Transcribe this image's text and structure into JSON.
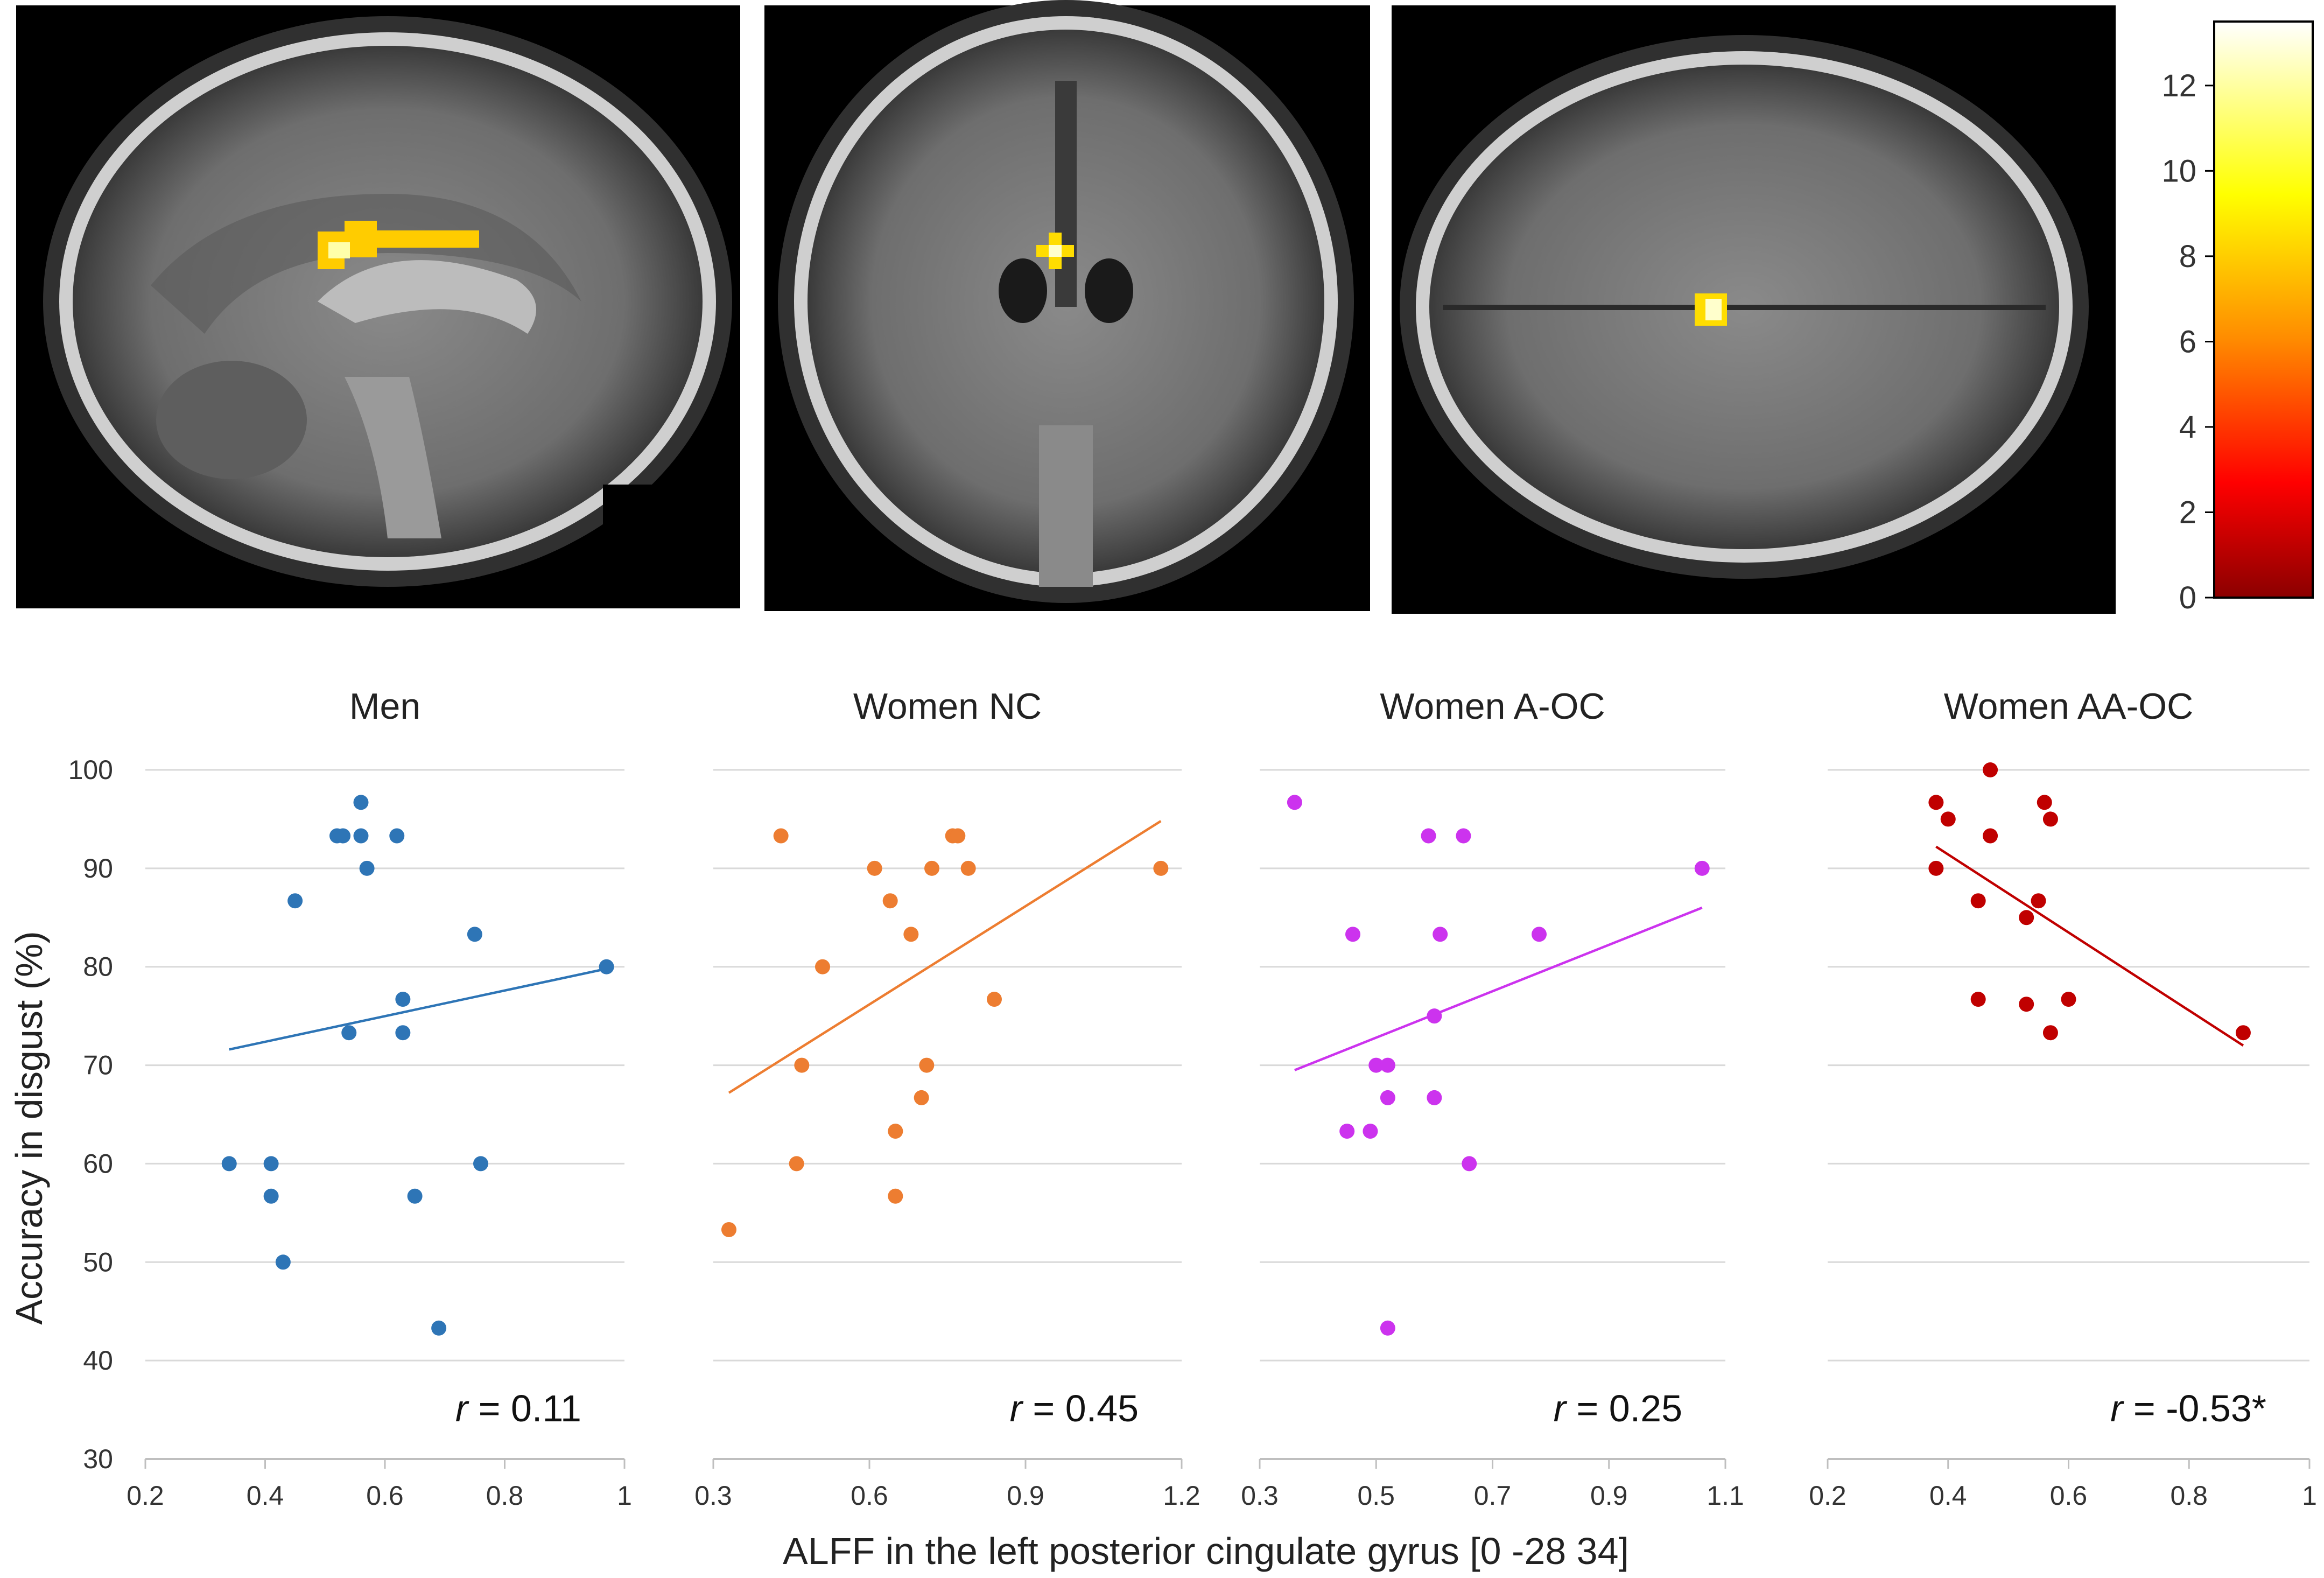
{
  "colorbar": {
    "ticks": [
      "0",
      "2",
      "4",
      "6",
      "8",
      "10",
      "12"
    ],
    "values": [
      0,
      2,
      4,
      6,
      8,
      10,
      12
    ],
    "range": [
      0,
      13.5
    ],
    "colors": [
      "#8b0000",
      "#ff0000",
      "#ff8c00",
      "#ffff00",
      "#ffffff"
    ]
  },
  "brain_views": [
    {
      "name": "sagittal",
      "background": "#000000"
    },
    {
      "name": "coronal",
      "background": "#000000"
    },
    {
      "name": "axial",
      "background": "#000000"
    }
  ],
  "chart_data": [
    {
      "type": "scatter",
      "title": "Men",
      "color": "#2e75b6",
      "xlim": [
        0.2,
        1
      ],
      "xticks": [
        "0.2",
        "0.4",
        "0.6",
        "0.8",
        "1"
      ],
      "xtick_values": [
        0.2,
        0.4,
        0.6,
        0.8,
        1.0
      ],
      "ylim": [
        30,
        100
      ],
      "points": [
        [
          0.34,
          60
        ],
        [
          0.41,
          60
        ],
        [
          0.41,
          56.7
        ],
        [
          0.43,
          50
        ],
        [
          0.45,
          86.7
        ],
        [
          0.52,
          93.3
        ],
        [
          0.53,
          93.3
        ],
        [
          0.54,
          73.3
        ],
        [
          0.56,
          96.7
        ],
        [
          0.56,
          93.3
        ],
        [
          0.57,
          90
        ],
        [
          0.62,
          93.3
        ],
        [
          0.63,
          76.7
        ],
        [
          0.63,
          73.3
        ],
        [
          0.65,
          56.7
        ],
        [
          0.69,
          43.3
        ],
        [
          0.75,
          83.3
        ],
        [
          0.76,
          60
        ],
        [
          0.97,
          80
        ]
      ],
      "fit": [
        [
          0.34,
          71.6
        ],
        [
          0.97,
          79.8
        ]
      ],
      "r_prefix": "r",
      "r_value": " = 0.11"
    },
    {
      "type": "scatter",
      "title": "Women NC",
      "color": "#ed7d31",
      "xlim": [
        0.3,
        1.2
      ],
      "xticks": [
        "0.3",
        "0.6",
        "0.9",
        "1.2"
      ],
      "xtick_values": [
        0.3,
        0.6,
        0.9,
        1.2
      ],
      "ylim": [
        30,
        100
      ],
      "points": [
        [
          0.33,
          53.3
        ],
        [
          0.43,
          93.3
        ],
        [
          0.46,
          60
        ],
        [
          0.47,
          70
        ],
        [
          0.51,
          80
        ],
        [
          0.61,
          90
        ],
        [
          0.64,
          86.7
        ],
        [
          0.65,
          63.3
        ],
        [
          0.65,
          56.7
        ],
        [
          0.68,
          83.3
        ],
        [
          0.7,
          66.7
        ],
        [
          0.71,
          70
        ],
        [
          0.72,
          90
        ],
        [
          0.76,
          93.3
        ],
        [
          0.77,
          93.3
        ],
        [
          0.79,
          90
        ],
        [
          0.84,
          76.7
        ],
        [
          1.16,
          90
        ]
      ],
      "fit": [
        [
          0.33,
          67.2
        ],
        [
          1.16,
          94.8
        ]
      ],
      "r_prefix": "r",
      "r_value": " = 0.45"
    },
    {
      "type": "scatter",
      "title": "Women A-OC",
      "color": "#cc33ee",
      "xlim": [
        0.3,
        1.1
      ],
      "xticks": [
        "0.3",
        "0.5",
        "0.7",
        "0.9",
        "1.1"
      ],
      "xtick_values": [
        0.3,
        0.5,
        0.7,
        0.9,
        1.1
      ],
      "ylim": [
        30,
        100
      ],
      "points": [
        [
          0.36,
          96.7
        ],
        [
          0.45,
          63.3
        ],
        [
          0.46,
          83.3
        ],
        [
          0.49,
          63.3
        ],
        [
          0.5,
          70
        ],
        [
          0.52,
          70
        ],
        [
          0.52,
          66.7
        ],
        [
          0.52,
          43.3
        ],
        [
          0.59,
          93.3
        ],
        [
          0.6,
          75
        ],
        [
          0.6,
          66.7
        ],
        [
          0.61,
          83.3
        ],
        [
          0.65,
          93.3
        ],
        [
          0.66,
          60
        ],
        [
          0.78,
          83.3
        ],
        [
          1.06,
          90
        ]
      ],
      "fit": [
        [
          0.36,
          69.5
        ],
        [
          1.06,
          86
        ]
      ],
      "r_prefix": "r",
      "r_value": " = 0.25"
    },
    {
      "type": "scatter",
      "title": "Women AA-OC",
      "color": "#c00000",
      "xlim": [
        0.2,
        1
      ],
      "xticks": [
        "0.2",
        "0.4",
        "0.6",
        "0.8",
        "1"
      ],
      "xtick_values": [
        0.2,
        0.4,
        0.6,
        0.8,
        1.0
      ],
      "ylim": [
        30,
        100
      ],
      "points": [
        [
          0.38,
          96.7
        ],
        [
          0.38,
          90
        ],
        [
          0.4,
          95
        ],
        [
          0.45,
          86.7
        ],
        [
          0.45,
          76.7
        ],
        [
          0.47,
          100
        ],
        [
          0.47,
          93.3
        ],
        [
          0.53,
          85
        ],
        [
          0.53,
          76.2
        ],
        [
          0.55,
          86.7
        ],
        [
          0.56,
          96.7
        ],
        [
          0.57,
          95
        ],
        [
          0.57,
          73.3
        ],
        [
          0.6,
          76.7
        ],
        [
          0.89,
          73.3
        ]
      ],
      "fit": [
        [
          0.38,
          92.2
        ],
        [
          0.89,
          72
        ]
      ],
      "r_prefix": "r",
      "r_value": " = -0.53*"
    }
  ],
  "yaxis": {
    "label": "Accuracy in disgust (%)",
    "ticks": [
      "30",
      "40",
      "50",
      "60",
      "70",
      "80",
      "90",
      "100"
    ],
    "values": [
      30,
      40,
      50,
      60,
      70,
      80,
      90,
      100
    ]
  },
  "xaxis": {
    "label": "ALFF in the left posterior cingulate gyrus [0 -28 34]"
  }
}
